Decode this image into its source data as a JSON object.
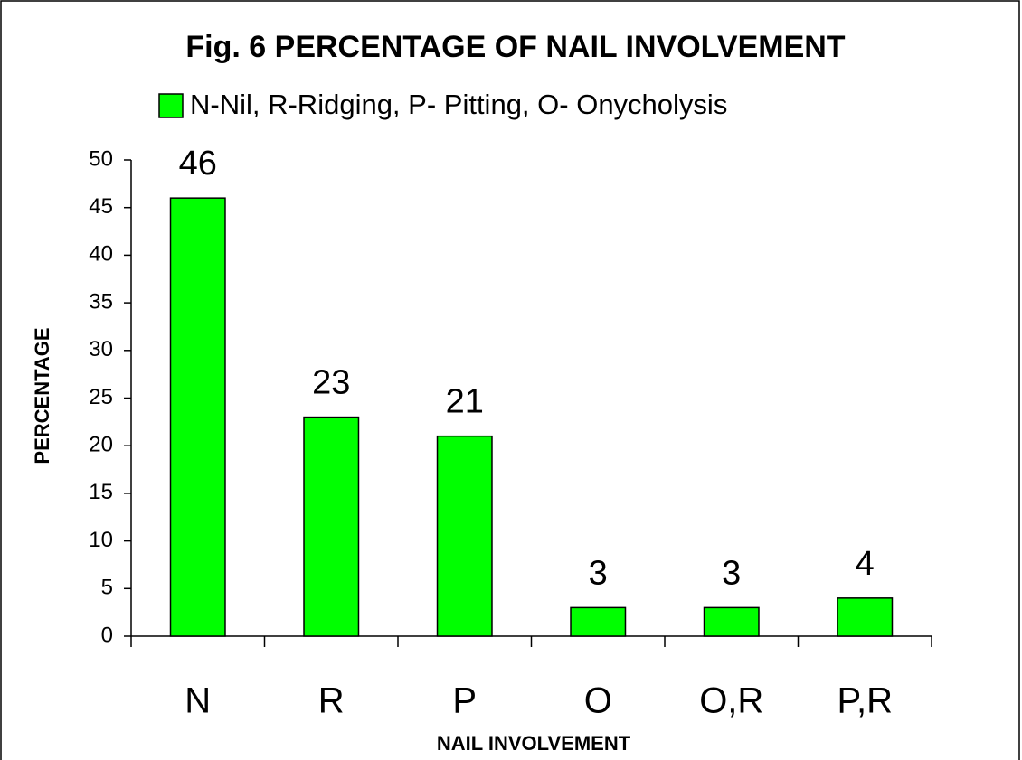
{
  "chart_data": {
    "type": "bar",
    "title": "Fig. 6 PERCENTAGE OF NAIL INVOLVEMENT",
    "x_label": "NAIL INVOLVEMENT",
    "y_label": "PERCENTAGE",
    "categories": [
      "N",
      "R",
      "P",
      "O",
      "O,R",
      "P,R"
    ],
    "series": [
      {
        "name": "N-Nil, R-Ridging, P- Pitting, O- Onycholysis",
        "color": "#00ff00",
        "values": [
          46,
          23,
          21,
          3,
          3,
          4
        ]
      }
    ],
    "ylim": [
      0,
      50
    ],
    "yticks": [
      0,
      5,
      10,
      15,
      20,
      25,
      30,
      35,
      40,
      45,
      50
    ],
    "legend": "top"
  }
}
